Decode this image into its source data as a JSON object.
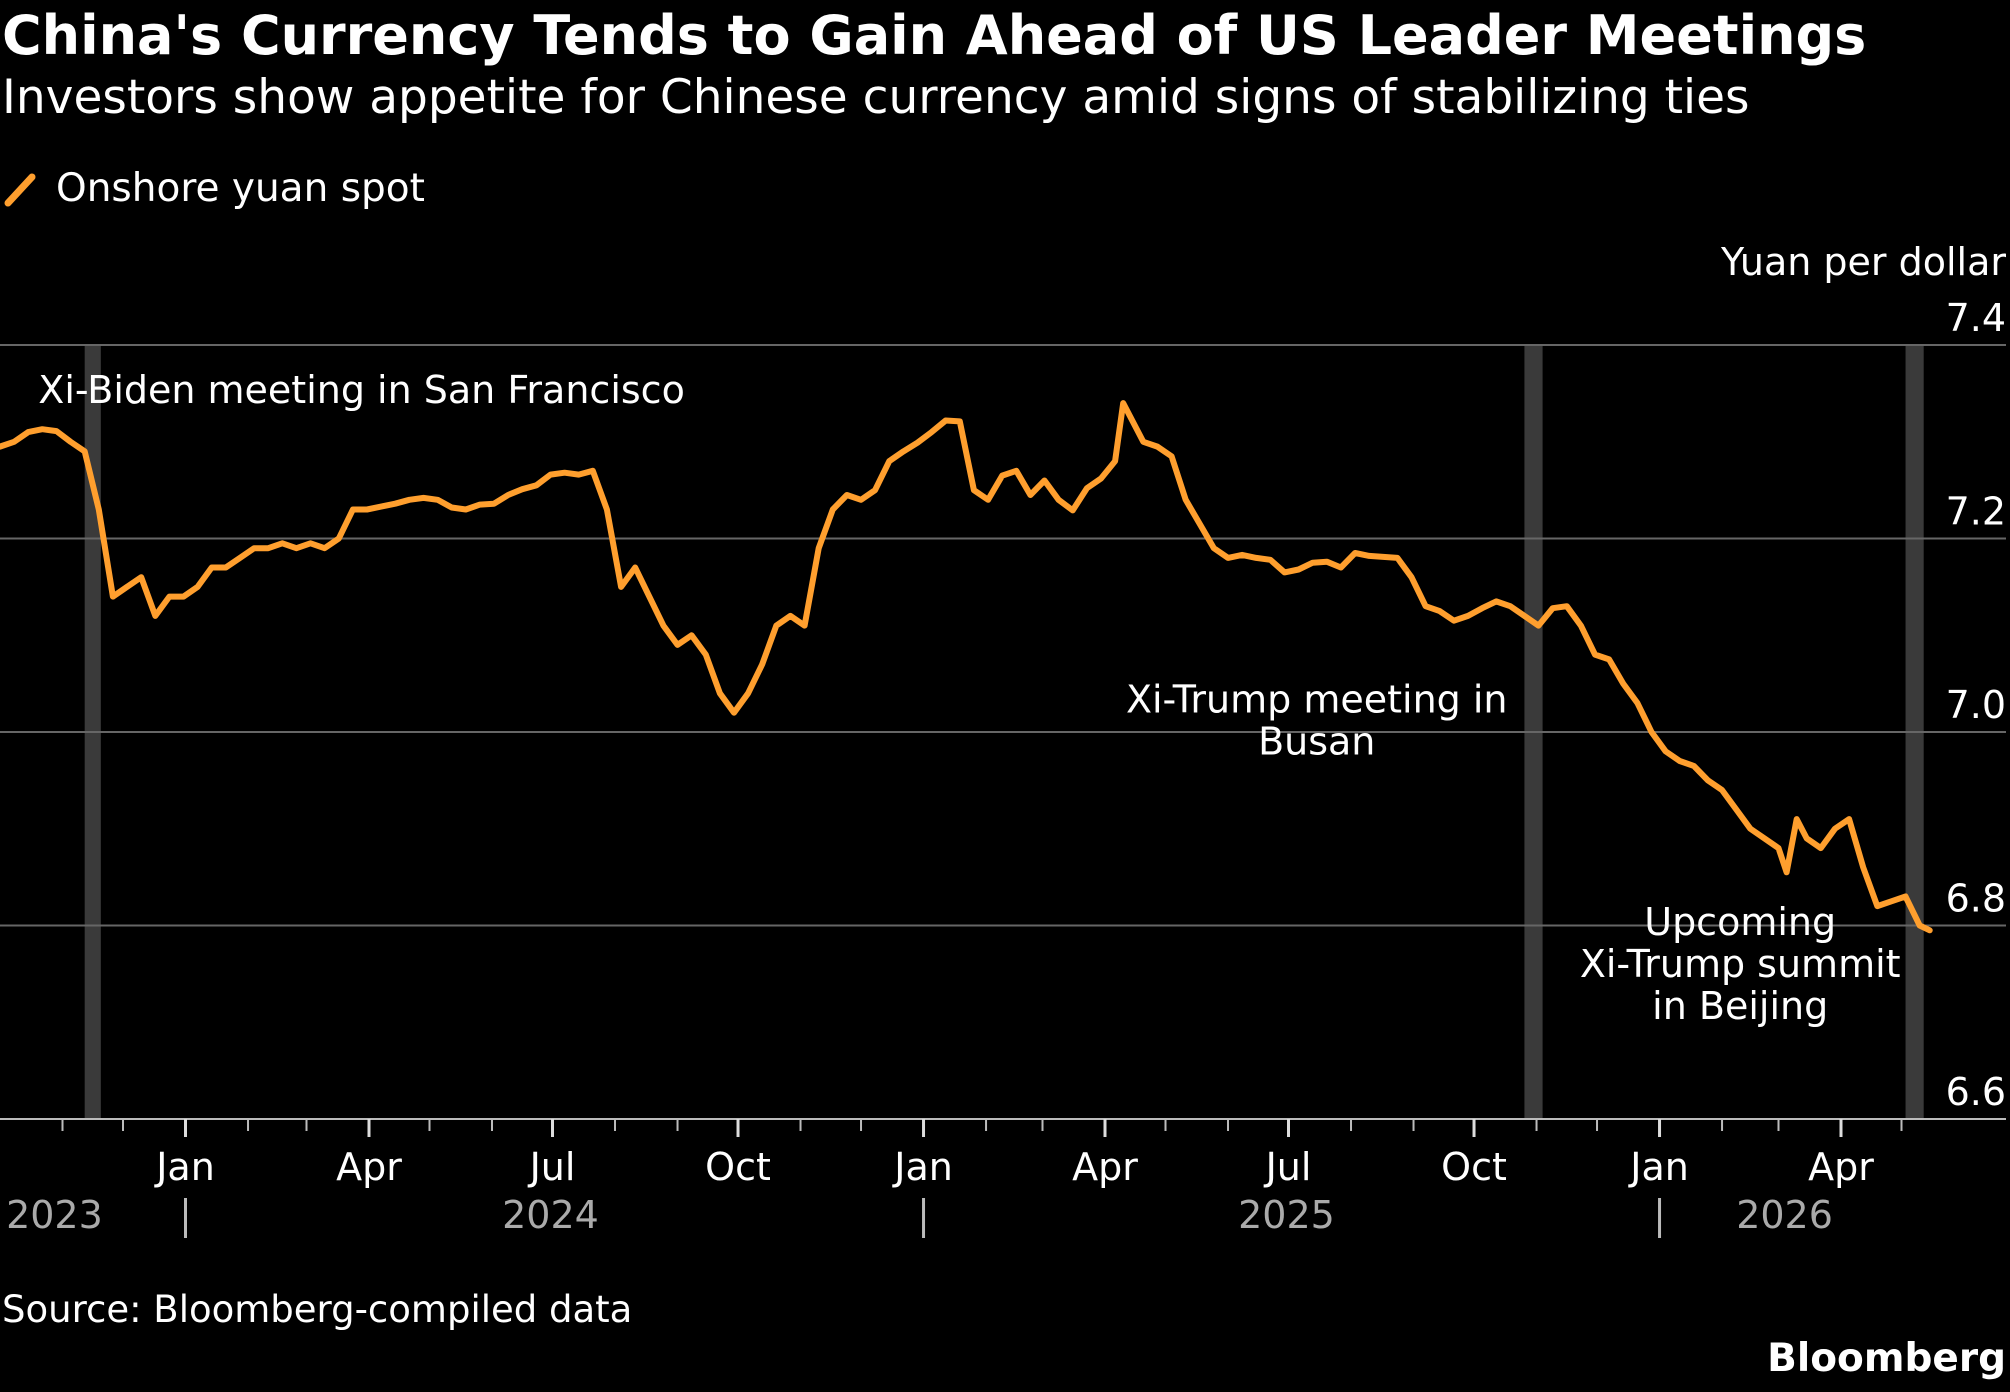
{
  "chart_data": {
    "type": "line",
    "title": "China's Currency Tends to Gain Ahead of US Leader Meetings",
    "subtitle": "Investors show appetite for Chinese currency amid signs of stabilizing ties",
    "ylabel": "Yuan per dollar",
    "ylim": [
      6.6,
      7.4
    ],
    "yticks": [
      6.6,
      6.8,
      7.0,
      7.2,
      7.4
    ],
    "grid": true,
    "legend_position": "top-left",
    "series": [
      {
        "name": "Onshore yuan spot",
        "color": "#ff9f2e",
        "points": [
          [
            "2023-10-01",
            7.295
          ],
          [
            "2023-10-08",
            7.3
          ],
          [
            "2023-10-15",
            7.31
          ],
          [
            "2023-10-22",
            7.313
          ],
          [
            "2023-10-29",
            7.311
          ],
          [
            "2023-11-05",
            7.3
          ],
          [
            "2023-11-12",
            7.29
          ],
          [
            "2023-11-19",
            7.23
          ],
          [
            "2023-11-26",
            7.14
          ],
          [
            "2023-12-03",
            7.15
          ],
          [
            "2023-12-10",
            7.16
          ],
          [
            "2023-12-17",
            7.12
          ],
          [
            "2023-12-24",
            7.14
          ],
          [
            "2023-12-31",
            7.14
          ],
          [
            "2024-01-07",
            7.15
          ],
          [
            "2024-01-14",
            7.17
          ],
          [
            "2024-01-21",
            7.17
          ],
          [
            "2024-01-28",
            7.18
          ],
          [
            "2024-02-04",
            7.19
          ],
          [
            "2024-02-11",
            7.19
          ],
          [
            "2024-02-18",
            7.195
          ],
          [
            "2024-02-25",
            7.19
          ],
          [
            "2024-03-03",
            7.195
          ],
          [
            "2024-03-10",
            7.19
          ],
          [
            "2024-03-17",
            7.2
          ],
          [
            "2024-03-24",
            7.23
          ],
          [
            "2024-03-31",
            7.23
          ],
          [
            "2024-04-07",
            7.233
          ],
          [
            "2024-04-14",
            7.236
          ],
          [
            "2024-04-21",
            7.24
          ],
          [
            "2024-04-28",
            7.242
          ],
          [
            "2024-05-05",
            7.24
          ],
          [
            "2024-05-12",
            7.232
          ],
          [
            "2024-05-19",
            7.23
          ],
          [
            "2024-05-26",
            7.235
          ],
          [
            "2024-06-02",
            7.236
          ],
          [
            "2024-06-09",
            7.245
          ],
          [
            "2024-06-16",
            7.251
          ],
          [
            "2024-06-23",
            7.255
          ],
          [
            "2024-06-30",
            7.266
          ],
          [
            "2024-07-07",
            7.268
          ],
          [
            "2024-07-14",
            7.266
          ],
          [
            "2024-07-21",
            7.27
          ],
          [
            "2024-07-28",
            7.23
          ],
          [
            "2024-08-04",
            7.15
          ],
          [
            "2024-08-11",
            7.17
          ],
          [
            "2024-08-18",
            7.14
          ],
          [
            "2024-08-25",
            7.11
          ],
          [
            "2024-09-01",
            7.09
          ],
          [
            "2024-09-08",
            7.1
          ],
          [
            "2024-09-15",
            7.08
          ],
          [
            "2024-09-22",
            7.04
          ],
          [
            "2024-09-29",
            7.02
          ],
          [
            "2024-10-06",
            7.04
          ],
          [
            "2024-10-13",
            7.07
          ],
          [
            "2024-10-20",
            7.11
          ],
          [
            "2024-10-27",
            7.12
          ],
          [
            "2024-11-03",
            7.11
          ],
          [
            "2024-11-10",
            7.19
          ],
          [
            "2024-11-17",
            7.23
          ],
          [
            "2024-11-24",
            7.245
          ],
          [
            "2024-12-01",
            7.24
          ],
          [
            "2024-12-08",
            7.25
          ],
          [
            "2024-12-15",
            7.28
          ],
          [
            "2024-12-22",
            7.29
          ],
          [
            "2024-12-29",
            7.299
          ],
          [
            "2025-01-05",
            7.31
          ],
          [
            "2025-01-12",
            7.322
          ],
          [
            "2025-01-19",
            7.321
          ],
          [
            "2025-01-26",
            7.25
          ],
          [
            "2025-02-02",
            7.24
          ],
          [
            "2025-02-09",
            7.265
          ],
          [
            "2025-02-16",
            7.27
          ],
          [
            "2025-02-23",
            7.245
          ],
          [
            "2025-03-02",
            7.26
          ],
          [
            "2025-03-09",
            7.24
          ],
          [
            "2025-03-16",
            7.229
          ],
          [
            "2025-03-23",
            7.252
          ],
          [
            "2025-03-30",
            7.262
          ],
          [
            "2025-04-06",
            7.28
          ],
          [
            "2025-04-10",
            7.34
          ],
          [
            "2025-04-20",
            7.3
          ],
          [
            "2025-04-27",
            7.295
          ],
          [
            "2025-05-04",
            7.285
          ],
          [
            "2025-05-11",
            7.24
          ],
          [
            "2025-05-18",
            7.215
          ],
          [
            "2025-05-25",
            7.19
          ],
          [
            "2025-06-01",
            7.18
          ],
          [
            "2025-06-08",
            7.183
          ],
          [
            "2025-06-15",
            7.18
          ],
          [
            "2025-06-22",
            7.178
          ],
          [
            "2025-06-29",
            7.165
          ],
          [
            "2025-07-06",
            7.168
          ],
          [
            "2025-07-13",
            7.175
          ],
          [
            "2025-07-20",
            7.176
          ],
          [
            "2025-07-27",
            7.17
          ],
          [
            "2025-08-03",
            7.185
          ],
          [
            "2025-08-10",
            7.182
          ],
          [
            "2025-08-17",
            7.181
          ],
          [
            "2025-08-24",
            7.18
          ],
          [
            "2025-08-31",
            7.16
          ],
          [
            "2025-09-07",
            7.13
          ],
          [
            "2025-09-14",
            7.125
          ],
          [
            "2025-09-21",
            7.115
          ],
          [
            "2025-09-28",
            7.12
          ],
          [
            "2025-10-05",
            7.128
          ],
          [
            "2025-10-12",
            7.135
          ],
          [
            "2025-10-19",
            7.13
          ],
          [
            "2025-10-26",
            7.12
          ],
          [
            "2025-11-02",
            7.11
          ],
          [
            "2025-11-09",
            7.128
          ],
          [
            "2025-11-16",
            7.13
          ],
          [
            "2025-11-23",
            7.11
          ],
          [
            "2025-11-30",
            7.08
          ],
          [
            "2025-12-07",
            7.075
          ],
          [
            "2025-12-14",
            7.05
          ],
          [
            "2025-12-21",
            7.03
          ],
          [
            "2025-12-28",
            7.0
          ],
          [
            "2026-01-04",
            6.98
          ],
          [
            "2026-01-11",
            6.97
          ],
          [
            "2026-01-18",
            6.965
          ],
          [
            "2026-01-25",
            6.95
          ],
          [
            "2026-02-01",
            6.94
          ],
          [
            "2026-02-08",
            6.92
          ],
          [
            "2026-02-15",
            6.9
          ],
          [
            "2026-02-22",
            6.89
          ],
          [
            "2026-03-01",
            6.88
          ],
          [
            "2026-03-05",
            6.855
          ],
          [
            "2026-03-10",
            6.91
          ],
          [
            "2026-03-15",
            6.89
          ],
          [
            "2026-03-22",
            6.88
          ],
          [
            "2026-03-29",
            6.9
          ],
          [
            "2026-04-05",
            6.91
          ],
          [
            "2026-04-12",
            6.86
          ],
          [
            "2026-04-19",
            6.82
          ],
          [
            "2026-04-26",
            6.825
          ],
          [
            "2026-05-03",
            6.83
          ],
          [
            "2026-05-10",
            6.8
          ],
          [
            "2026-05-15",
            6.795
          ]
        ]
      }
    ],
    "highlight_bands": [
      {
        "start": "2023-11-12",
        "end": "2023-11-20"
      },
      {
        "start": "2025-10-26",
        "end": "2025-11-04"
      },
      {
        "start": "2026-05-03",
        "end": "2026-05-12"
      }
    ],
    "annotations": [
      {
        "lines": [
          "Xi-Biden meeting in San Francisco"
        ],
        "x": "2023-10-20",
        "y": 7.34,
        "anchor": "start"
      },
      {
        "lines": [
          "Xi-Trump meeting in",
          "Busan"
        ],
        "x": "2025-07-15",
        "y": 7.02,
        "anchor": "middle"
      },
      {
        "lines": [
          "Upcoming",
          "Xi-Trump summit",
          "in Beijing"
        ],
        "x": "2026-02-10",
        "y": 6.79,
        "anchor": "middle"
      }
    ],
    "x_ticks": [
      {
        "date": "2024-01-01",
        "label": "Jan"
      },
      {
        "date": "2024-04-01",
        "label": "Apr"
      },
      {
        "date": "2024-07-01",
        "label": "Jul"
      },
      {
        "date": "2024-10-01",
        "label": "Oct"
      },
      {
        "date": "2025-01-01",
        "label": "Jan"
      },
      {
        "date": "2025-04-01",
        "label": "Apr"
      },
      {
        "date": "2025-07-01",
        "label": "Jul"
      },
      {
        "date": "2025-10-01",
        "label": "Oct"
      },
      {
        "date": "2026-01-01",
        "label": "Jan"
      },
      {
        "date": "2026-04-01",
        "label": "Apr"
      }
    ],
    "year_labels": [
      {
        "label": "2023",
        "date": "2023-10-28"
      },
      {
        "label": "2024",
        "date": "2024-06-30"
      },
      {
        "label": "2025",
        "date": "2025-06-30"
      },
      {
        "label": "2026",
        "date": "2026-03-04"
      }
    ],
    "year_separators": [
      "2024-01-01",
      "2025-01-01",
      "2026-01-01"
    ],
    "x_range": [
      "2023-10-01",
      "2026-05-31"
    ]
  },
  "source": "Source: Bloomberg-compiled data",
  "brand": "Bloomberg"
}
